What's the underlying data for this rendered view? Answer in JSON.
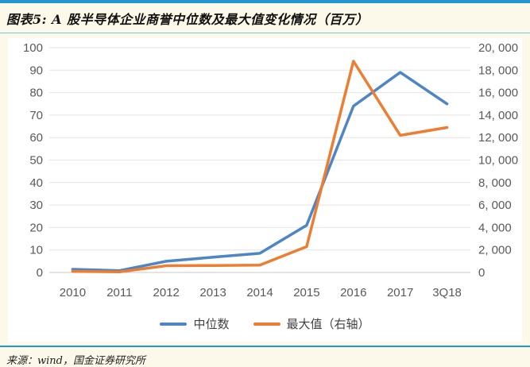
{
  "page": {
    "title": "图表5: A 股半导体企业商誉中位数及最大值变化情况（百万）",
    "source_note": "来源：wind，国金证券研究所",
    "accent_color": "#2196D3",
    "background_color": "#FDF9EA"
  },
  "chart_data": {
    "type": "line",
    "title": "A股半导体企业商誉中位数及最大值变化情况（百万）",
    "categories": [
      "2010",
      "2011",
      "2012",
      "2013",
      "2014",
      "2015",
      "2016",
      "2017",
      "3Q18"
    ],
    "series": [
      {
        "name": "中位数",
        "axis": "left",
        "color": "#4E86C5",
        "values": [
          1.4,
          0.8,
          5.0,
          6.8,
          8.5,
          21,
          74,
          89,
          75
        ]
      },
      {
        "name": "最大值（右轴）",
        "axis": "right",
        "color": "#ED7D31",
        "values": [
          100,
          50,
          600,
          620,
          650,
          2300,
          18800,
          12200,
          12900
        ]
      }
    ],
    "left_axis": {
      "min": 0,
      "max": 100,
      "step": 10,
      "tick_labels": [
        "0",
        "10",
        "20",
        "30",
        "40",
        "50",
        "60",
        "70",
        "80",
        "90",
        "100"
      ]
    },
    "right_axis": {
      "min": 0,
      "max": 20000,
      "step": 2000,
      "tick_labels": [
        "0",
        "2, 000",
        "4, 000",
        "6, 000",
        "8, 000",
        "10, 000",
        "12, 000",
        "14, 000",
        "16, 000",
        "18, 000",
        "20, 000"
      ]
    },
    "grid": true,
    "legend_position": "bottom",
    "plot_bg": "#FFFFFF",
    "grid_color": "#E4E4E4",
    "baseline_color": "#C9C9C9",
    "axis_label_color": "#595959",
    "line_width": 3.5
  }
}
